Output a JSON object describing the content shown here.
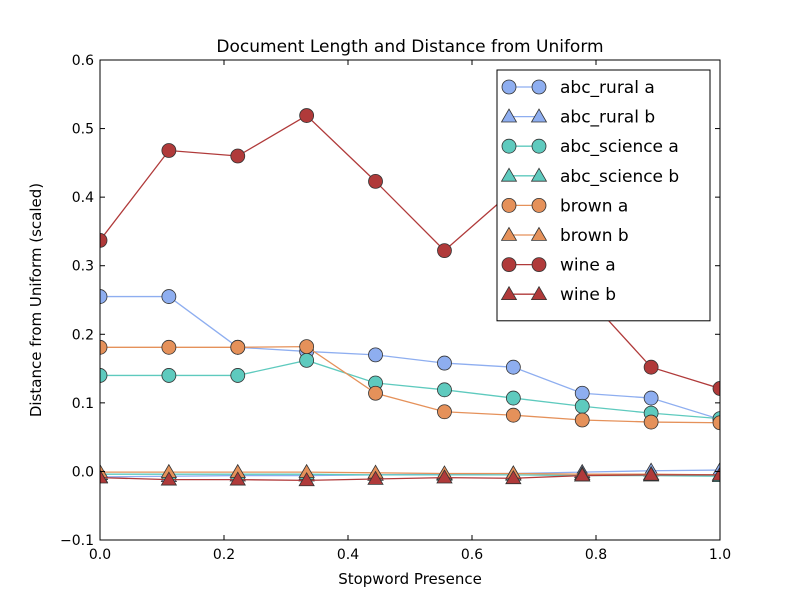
{
  "chart_data": {
    "type": "line",
    "title": "Document Length and Distance from Uniform",
    "xlabel": "Stopword Presence",
    "ylabel": "Distance from Uniform (scaled)",
    "xlim": [
      0.0,
      1.0
    ],
    "ylim": [
      -0.1,
      0.6
    ],
    "xticks": [
      "0.0",
      "0.2",
      "0.4",
      "0.6",
      "0.8",
      "1.0"
    ],
    "yticks": [
      "−0.1",
      "0.0",
      "0.1",
      "0.2",
      "0.3",
      "0.4",
      "0.5",
      "0.6"
    ],
    "grid": false,
    "legend_position": "top-right",
    "x": [
      0.0,
      0.1111,
      0.2222,
      0.3333,
      0.4444,
      0.5556,
      0.6667,
      0.7778,
      0.8889,
      1.0
    ],
    "series": [
      {
        "name": "abc_rural a",
        "marker": "circle",
        "color": "#8eaef0",
        "values": [
          0.255,
          0.255,
          0.181,
          0.175,
          0.17,
          0.158,
          0.152,
          0.114,
          0.107,
          0.076
        ]
      },
      {
        "name": "abc_rural b",
        "marker": "triangle",
        "color": "#8eaef0",
        "values": [
          -0.008,
          -0.007,
          -0.006,
          -0.006,
          -0.005,
          -0.004,
          -0.003,
          -0.001,
          0.001,
          0.002
        ]
      },
      {
        "name": "abc_science a",
        "marker": "circle",
        "color": "#5ecabe",
        "values": [
          0.14,
          0.14,
          0.14,
          0.162,
          0.129,
          0.119,
          0.107,
          0.095,
          0.085,
          0.077
        ]
      },
      {
        "name": "abc_science b",
        "marker": "triangle",
        "color": "#5ecabe",
        "values": [
          -0.004,
          -0.004,
          -0.004,
          -0.004,
          -0.005,
          -0.005,
          -0.005,
          -0.006,
          -0.006,
          -0.007
        ]
      },
      {
        "name": "brown a",
        "marker": "circle",
        "color": "#e5915a",
        "values": [
          0.181,
          0.181,
          0.181,
          0.182,
          0.114,
          0.087,
          0.082,
          0.075,
          0.072,
          0.071
        ]
      },
      {
        "name": "brown b",
        "marker": "triangle",
        "color": "#e5915a",
        "values": [
          -0.001,
          -0.001,
          -0.001,
          -0.001,
          -0.002,
          -0.003,
          -0.003,
          -0.004,
          -0.004,
          -0.005
        ]
      },
      {
        "name": "wine a",
        "marker": "circle",
        "color": "#b03a3a",
        "values": [
          0.337,
          0.468,
          0.46,
          0.519,
          0.423,
          0.322,
          0.41,
          0.262,
          0.152,
          0.121
        ]
      },
      {
        "name": "wine b",
        "marker": "triangle",
        "color": "#b03a3a",
        "values": [
          -0.009,
          -0.012,
          -0.012,
          -0.013,
          -0.011,
          -0.009,
          -0.01,
          -0.006,
          -0.005,
          -0.005
        ]
      }
    ]
  }
}
